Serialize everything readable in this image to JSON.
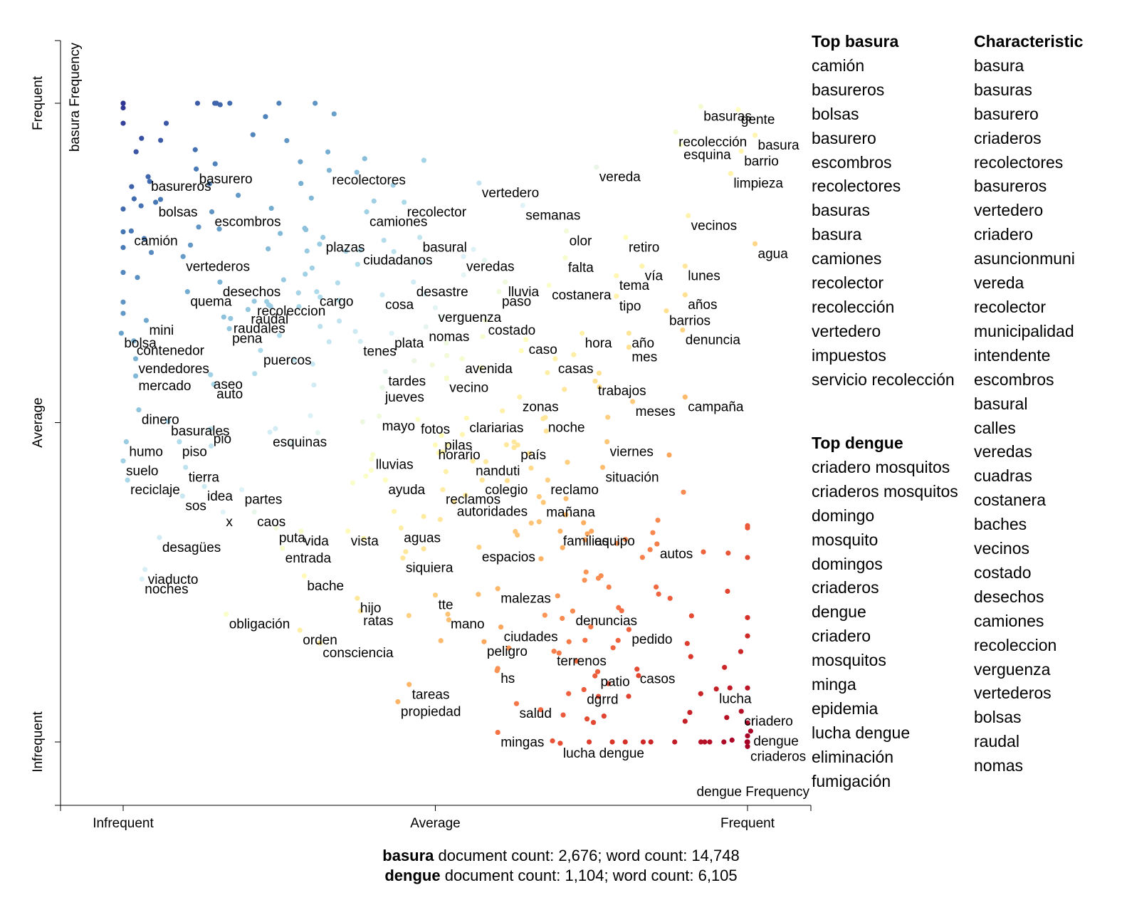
{
  "chart_data": {
    "type": "scatter",
    "xlabel": "dengue Frequency",
    "ylabel": "basura Frequency",
    "x_ticks": [
      "Infrequent",
      "Average",
      "Frequent"
    ],
    "y_ticks": [
      "Infrequent",
      "Average",
      "Frequent"
    ],
    "xlim": [
      -0.1,
      1.1
    ],
    "ylim": [
      -0.1,
      1.1
    ],
    "color_scale": [
      "#313695",
      "#4575b4",
      "#74add1",
      "#abd9e9",
      "#e0f3f8",
      "#ffffbf",
      "#fee090",
      "#fdae61",
      "#f46d43",
      "#d73027",
      "#a50026"
    ],
    "labeled_points": [
      [
        "basureros",
        0.04,
        0.885
      ],
      [
        "basurero",
        0.117,
        0.897
      ],
      [
        "bolsas",
        0.052,
        0.845
      ],
      [
        "escombros",
        0.142,
        0.83
      ],
      [
        "camión",
        0.013,
        0.8
      ],
      [
        "vertederos",
        0.096,
        0.76
      ],
      [
        "desechos",
        0.155,
        0.72
      ],
      [
        "quema",
        0.103,
        0.705
      ],
      [
        "recoleccion",
        0.21,
        0.69
      ],
      [
        "raudal",
        0.2,
        0.677
      ],
      [
        "mini",
        0.037,
        0.66
      ],
      [
        "raudales",
        0.172,
        0.663
      ],
      [
        "bolsa",
        -0.003,
        0.64
      ],
      [
        "pena",
        0.17,
        0.647
      ],
      [
        "contenedor",
        0.017,
        0.628
      ],
      [
        "puercos",
        0.22,
        0.613
      ],
      [
        "vendedores",
        0.02,
        0.6
      ],
      [
        "mercado",
        0.02,
        0.573
      ],
      [
        "aseo",
        0.14,
        0.575
      ],
      [
        "auto",
        0.145,
        0.56
      ],
      [
        "dinero",
        0.025,
        0.52
      ],
      [
        "basurales",
        0.072,
        0.502
      ],
      [
        "humo",
        0.005,
        0.47
      ],
      [
        "piso",
        0.09,
        0.47
      ],
      [
        "pio",
        0.14,
        0.49
      ],
      [
        "esquinas",
        0.235,
        0.485
      ],
      [
        "suelo",
        0.0,
        0.44
      ],
      [
        "tierra",
        0.1,
        0.43
      ],
      [
        "reciclaje",
        0.007,
        0.41
      ],
      [
        "idea",
        0.13,
        0.4
      ],
      [
        "sos",
        0.095,
        0.385
      ],
      [
        "partes",
        0.19,
        0.395
      ],
      [
        "x",
        0.16,
        0.36
      ],
      [
        "caos",
        0.21,
        0.36
      ],
      [
        "puta",
        0.245,
        0.335
      ],
      [
        "desagües",
        0.058,
        0.32
      ],
      [
        "vida",
        0.285,
        0.33
      ],
      [
        "vista",
        0.36,
        0.33
      ],
      [
        "entrada",
        0.255,
        0.303
      ],
      [
        "viaducto",
        0.035,
        0.27
      ],
      [
        "noches",
        0.03,
        0.255
      ],
      [
        "bache",
        0.29,
        0.26
      ],
      [
        "obligación",
        0.165,
        0.2
      ],
      [
        "orden",
        0.283,
        0.175
      ],
      [
        "consciencia",
        0.315,
        0.155
      ],
      [
        "hijo",
        0.375,
        0.225
      ],
      [
        "ratas",
        0.38,
        0.205
      ],
      [
        "tte",
        0.5,
        0.23
      ],
      [
        "mano",
        0.52,
        0.2
      ],
      [
        "malezas",
        0.6,
        0.24
      ],
      [
        "recolectores",
        0.33,
        0.895
      ],
      [
        "vertedero",
        0.57,
        0.875
      ],
      [
        "camiones",
        0.39,
        0.83
      ],
      [
        "recolector",
        0.45,
        0.845
      ],
      [
        "semanas",
        0.64,
        0.84
      ],
      [
        "plazas",
        0.32,
        0.79
      ],
      [
        "basural",
        0.475,
        0.79
      ],
      [
        "veredas",
        0.545,
        0.76
      ],
      [
        "ciudadanos",
        0.38,
        0.77
      ],
      [
        "cargo",
        0.31,
        0.705
      ],
      [
        "desastre",
        0.465,
        0.72
      ],
      [
        "lluvia",
        0.612,
        0.72
      ],
      [
        "cosa",
        0.415,
        0.7
      ],
      [
        "verguenza",
        0.5,
        0.68
      ],
      [
        "paso",
        0.602,
        0.705
      ],
      [
        "costanera",
        0.682,
        0.715
      ],
      [
        "plata",
        0.43,
        0.64
      ],
      [
        "nomas",
        0.485,
        0.65
      ],
      [
        "costado",
        0.58,
        0.66
      ],
      [
        "tenes",
        0.38,
        0.627
      ],
      [
        "avenida",
        0.543,
        0.6
      ],
      [
        "tardes",
        0.42,
        0.58
      ],
      [
        "jueves",
        0.415,
        0.555
      ],
      [
        "vecino",
        0.518,
        0.57
      ],
      [
        "mayo",
        0.41,
        0.51
      ],
      [
        "fotos",
        0.472,
        0.505
      ],
      [
        "pilas",
        0.51,
        0.48
      ],
      [
        "horario",
        0.5,
        0.465
      ],
      [
        "clariarias",
        0.55,
        0.507
      ],
      [
        "lluvias",
        0.4,
        0.45
      ],
      [
        "ayuda",
        0.42,
        0.41
      ],
      [
        "reclamos",
        0.512,
        0.395
      ],
      [
        "autoridades",
        0.53,
        0.376
      ],
      [
        "colegio",
        0.575,
        0.41
      ],
      [
        "aguas",
        0.445,
        0.335
      ],
      [
        "espacios",
        0.57,
        0.305
      ],
      [
        "siquiera",
        0.448,
        0.288
      ],
      [
        "familias",
        0.7,
        0.33
      ],
      [
        "vereda",
        0.758,
        0.9
      ],
      [
        "recolección",
        0.885,
        0.955
      ],
      [
        "esquina",
        0.893,
        0.935
      ],
      [
        "basuras",
        0.925,
        0.995
      ],
      [
        "gente",
        0.985,
        0.99
      ],
      [
        "basura",
        1.012,
        0.95
      ],
      [
        "barrio",
        0.99,
        0.925
      ],
      [
        "limpieza",
        0.973,
        0.89
      ],
      [
        "olor",
        0.71,
        0.8
      ],
      [
        "retiro",
        0.805,
        0.79
      ],
      [
        "falta",
        0.708,
        0.758
      ],
      [
        "vía",
        0.831,
        0.745
      ],
      [
        "vecinos",
        0.905,
        0.824
      ],
      [
        "agua",
        1.012,
        0.78
      ],
      [
        "lunes",
        0.9,
        0.745
      ],
      [
        "tema",
        0.79,
        0.73
      ],
      [
        "años",
        0.9,
        0.7
      ],
      [
        "tipo",
        0.79,
        0.698
      ],
      [
        "barrios",
        0.87,
        0.675
      ],
      [
        "hora",
        0.735,
        0.64
      ],
      [
        "año",
        0.81,
        0.64
      ],
      [
        "mes",
        0.81,
        0.618
      ],
      [
        "denuncia",
        0.896,
        0.645
      ],
      [
        "caso",
        0.645,
        0.63
      ],
      [
        "casas",
        0.692,
        0.6
      ],
      [
        "trabajos",
        0.756,
        0.565
      ],
      [
        "zonas",
        0.635,
        0.54
      ],
      [
        "meses",
        0.816,
        0.533
      ],
      [
        "campaña",
        0.9,
        0.54
      ],
      [
        "noche",
        0.676,
        0.508
      ],
      [
        "viernes",
        0.775,
        0.47
      ],
      [
        "país",
        0.632,
        0.465
      ],
      [
        "situación",
        0.768,
        0.43
      ],
      [
        "nanduti",
        0.56,
        0.44
      ],
      [
        "reclamo",
        0.68,
        0.41
      ],
      [
        "mañana",
        0.673,
        0.375
      ],
      [
        "equipo",
        0.75,
        0.33
      ],
      [
        "autos",
        0.855,
        0.31
      ],
      [
        "denuncias",
        0.72,
        0.205
      ],
      [
        "ciudades",
        0.605,
        0.18
      ],
      [
        "pedido",
        0.81,
        0.176
      ],
      [
        "peligro",
        0.578,
        0.157
      ],
      [
        "terrenos",
        0.69,
        0.142
      ],
      [
        "hs",
        0.6,
        0.115
      ],
      [
        "patio",
        0.76,
        0.11
      ],
      [
        "casos",
        0.823,
        0.114
      ],
      [
        "tareas",
        0.458,
        0.09
      ],
      [
        "propiedad",
        0.44,
        0.063
      ],
      [
        "dgrrd",
        0.738,
        0.082
      ],
      [
        "salud",
        0.63,
        0.06
      ],
      [
        "lucha",
        0.95,
        0.083
      ],
      [
        "criadero",
        0.99,
        0.048
      ],
      [
        "mingas",
        0.6,
        0.015
      ],
      [
        "dengue",
        1.005,
        0.017
      ],
      [
        "lucha dengue",
        0.7,
        -0.002
      ],
      [
        "criaderos",
        1.0,
        -0.007
      ],
      [
        "nanduti",
        0.56,
        0.44
      ]
    ]
  },
  "top_basura": {
    "title": "Top basura",
    "items": [
      "camión",
      "basureros",
      "bolsas",
      "basurero",
      "escombros",
      "recolectores",
      "basuras",
      "basura",
      "camiones",
      "recolector",
      "recolección",
      "vertedero",
      "impuestos",
      "servicio recolección"
    ]
  },
  "top_dengue": {
    "title": "Top dengue",
    "items": [
      "criadero mosquitos",
      "criaderos mosquitos",
      "domingo",
      "mosquito",
      "domingos",
      "criaderos",
      "dengue",
      "criadero",
      "mosquitos",
      "minga",
      "epidemia",
      "lucha dengue",
      "eliminación",
      "fumigación"
    ]
  },
  "characteristic": {
    "title": "Characteristic",
    "items": [
      "basura",
      "basuras",
      "basurero",
      "criaderos",
      "recolectores",
      "basureros",
      "vertedero",
      "criadero",
      "asuncionmuni",
      "vereda",
      "recolector",
      "municipalidad",
      "intendente",
      "escombros",
      "basural",
      "calles",
      "veredas",
      "cuadras",
      "costanera",
      "baches",
      "vecinos",
      "costado",
      "desechos",
      "camiones",
      "recoleccion",
      "verguenza",
      "vertederos",
      "bolsas",
      "raudal",
      "nomas"
    ]
  },
  "footer": {
    "basura_name": "basura",
    "basura_counts": "document count: 2,676; word count: 14,748",
    "dengue_name": "dengue",
    "dengue_counts": "document count: 1,104; word count: 6,105"
  }
}
